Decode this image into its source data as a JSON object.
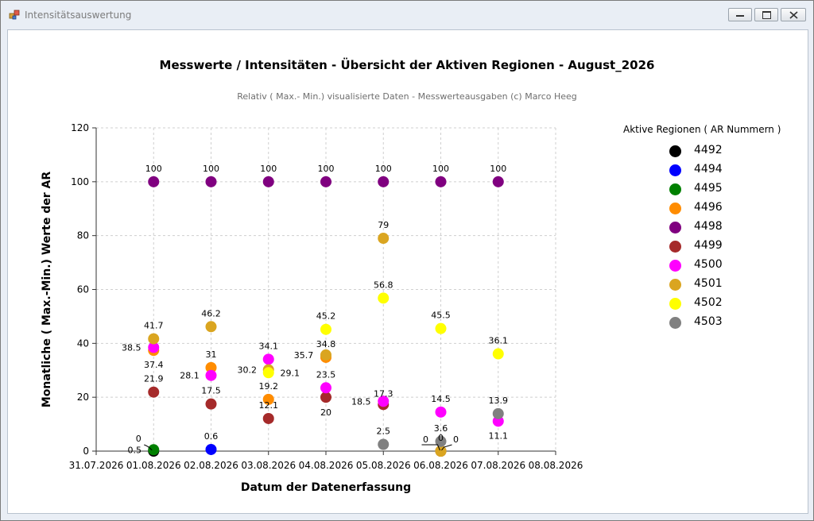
{
  "window": {
    "title": "Intensitätsauswertung"
  },
  "chart_data": {
    "type": "scatter",
    "title": "Messwerte / Intensitäten - Übersicht der Aktiven Regionen - August_2026",
    "subtitle": "Relativ ( Max.- Min.) visualisierte Daten  - Messwerteausgaben (c) Marco Heeg",
    "xlabel": "Datum der Datenerfassung",
    "ylabel": "Monatliche ( Max.-Min.) Werte der AR",
    "ylim": [
      0,
      120
    ],
    "yticks": [
      0,
      20,
      40,
      60,
      80,
      100,
      120
    ],
    "x_categories": [
      "31.07.2026",
      "01.08.2026",
      "02.08.2026",
      "03.08.2026",
      "04.08.2026",
      "05.08.2026",
      "06.08.2026",
      "07.08.2026",
      "08.08.2026"
    ],
    "grid": true,
    "legend_title": "Aktive Regionen ( AR Nummern )",
    "legend_position": "right",
    "series": [
      {
        "name": "4492",
        "color": "#000000",
        "points": [
          {
            "x": "01.08.2026",
            "y": 0
          },
          {
            "x": "06.08.2026",
            "y": 0
          }
        ]
      },
      {
        "name": "4494",
        "color": "#0000ff",
        "points": [
          {
            "x": "02.08.2026",
            "y": 0.6
          }
        ]
      },
      {
        "name": "4495",
        "color": "#008000",
        "points": [
          {
            "x": "01.08.2026",
            "y": 0.5
          }
        ]
      },
      {
        "name": "4496",
        "color": "#ff8c00",
        "points": [
          {
            "x": "01.08.2026",
            "y": 37.4
          },
          {
            "x": "02.08.2026",
            "y": 31
          },
          {
            "x": "03.08.2026",
            "y": 19.2
          },
          {
            "x": "04.08.2026",
            "y": 34.8
          },
          {
            "x": "06.08.2026",
            "y": 0
          }
        ]
      },
      {
        "name": "4498",
        "color": "#800080",
        "points": [
          {
            "x": "01.08.2026",
            "y": 100
          },
          {
            "x": "02.08.2026",
            "y": 100
          },
          {
            "x": "03.08.2026",
            "y": 100
          },
          {
            "x": "04.08.2026",
            "y": 100
          },
          {
            "x": "05.08.2026",
            "y": 100
          },
          {
            "x": "06.08.2026",
            "y": 100
          },
          {
            "x": "07.08.2026",
            "y": 100
          }
        ]
      },
      {
        "name": "4499",
        "color": "#a52a2a",
        "points": [
          {
            "x": "01.08.2026",
            "y": 21.9
          },
          {
            "x": "02.08.2026",
            "y": 17.5
          },
          {
            "x": "03.08.2026",
            "y": 12.1
          },
          {
            "x": "04.08.2026",
            "y": 20
          },
          {
            "x": "05.08.2026",
            "y": 17.3
          }
        ]
      },
      {
        "name": "4500",
        "color": "#ff00ff",
        "points": [
          {
            "x": "01.08.2026",
            "y": 38.5
          },
          {
            "x": "02.08.2026",
            "y": 28.1
          },
          {
            "x": "03.08.2026",
            "y": 34.1
          },
          {
            "x": "04.08.2026",
            "y": 23.5
          },
          {
            "x": "05.08.2026",
            "y": 18.5
          },
          {
            "x": "06.08.2026",
            "y": 14.5
          },
          {
            "x": "07.08.2026",
            "y": 11.1
          }
        ]
      },
      {
        "name": "4501",
        "color": "#daa520",
        "points": [
          {
            "x": "01.08.2026",
            "y": 41.7
          },
          {
            "x": "02.08.2026",
            "y": 46.2
          },
          {
            "x": "03.08.2026",
            "y": 30.2
          },
          {
            "x": "04.08.2026",
            "y": 35.7
          },
          {
            "x": "05.08.2026",
            "y": 79
          },
          {
            "x": "06.08.2026",
            "y": 0
          }
        ]
      },
      {
        "name": "4502",
        "color": "#ffff00",
        "points": [
          {
            "x": "03.08.2026",
            "y": 29.1
          },
          {
            "x": "04.08.2026",
            "y": 45.2
          },
          {
            "x": "05.08.2026",
            "y": 56.8
          },
          {
            "x": "06.08.2026",
            "y": 45.5
          },
          {
            "x": "07.08.2026",
            "y": 36.1
          }
        ]
      },
      {
        "name": "4503",
        "color": "#808080",
        "points": [
          {
            "x": "05.08.2026",
            "y": 2.5
          },
          {
            "x": "06.08.2026",
            "y": 3.6
          },
          {
            "x": "07.08.2026",
            "y": 13.9
          }
        ]
      }
    ]
  }
}
